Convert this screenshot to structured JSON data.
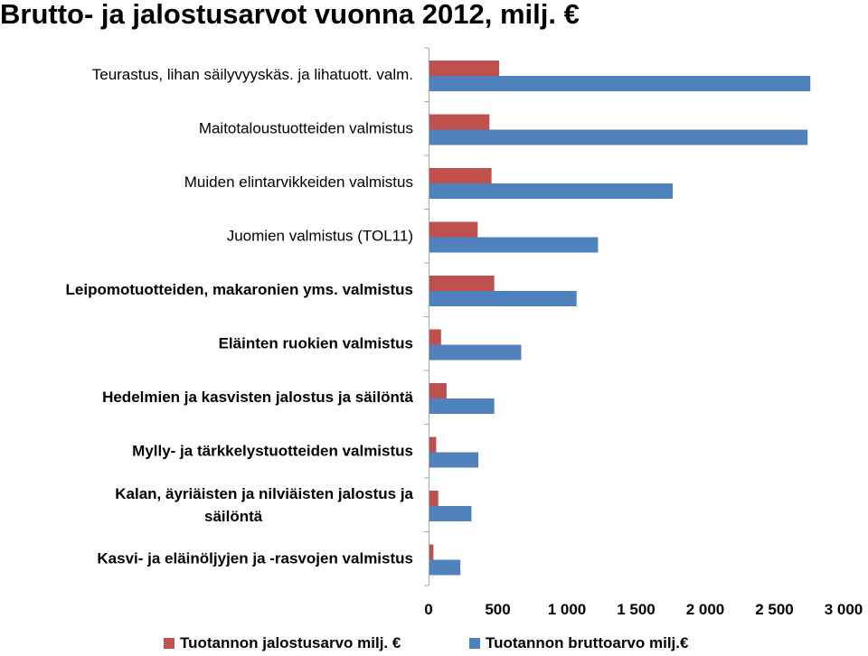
{
  "title": "Brutto- ja jalostusarvot vuonna 2012, milj. €",
  "chart_data": {
    "type": "bar",
    "orientation": "horizontal",
    "categories": [
      "Teurastus, lihan säilyvyyskäs. ja lihatuott. valm.",
      "Maitotaloustuotteiden valmistus",
      "Muiden elintarvikkeiden valmistus",
      "Juomien valmistus (TOL11)",
      "Leipomotuotteiden, makaronien yms. valmistus",
      "Eläinten ruokien valmistus",
      "Hedelmien ja kasvisten jalostus ja säilöntä",
      "Mylly- ja tärkkelystuotteiden valmistus",
      "Kalan, äyriäisten ja nilviäisten jalostus ja säilöntä",
      "Kasvi- ja eläinöljyjen ja -rasvojen valmistus"
    ],
    "series": [
      {
        "name": "Tuotannon jalostusarvo milj. €",
        "color": "#c0504d",
        "values": [
          510,
          440,
          455,
          355,
          475,
          90,
          130,
          55,
          70,
          35
        ]
      },
      {
        "name": "Tuotannon bruttoarvo milj.€",
        "color": "#4f81bd",
        "values": [
          2760,
          2740,
          1765,
          1225,
          1070,
          670,
          475,
          360,
          310,
          230
        ]
      }
    ],
    "xlim": [
      0,
      3000
    ],
    "xticks": [
      "0",
      "500",
      "1 000",
      "1 500",
      "2 000",
      "2 500",
      "3 000"
    ],
    "grid": false,
    "legend": "bottom"
  }
}
